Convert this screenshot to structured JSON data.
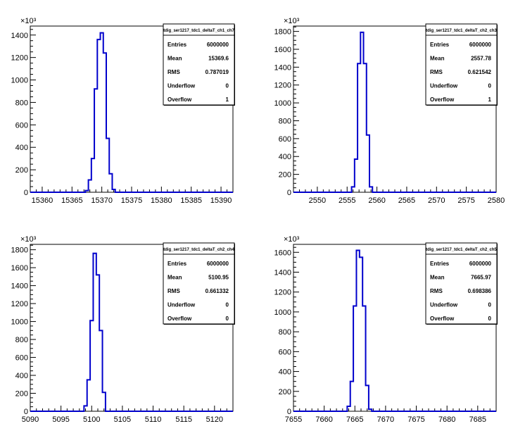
{
  "chart_data": [
    {
      "type": "histogram",
      "name": "tdig_ser1217_tdc1_deltaT_ch1_ch7",
      "x_ticks": [
        15360,
        15365,
        15370,
        15375,
        15380,
        15385,
        15390
      ],
      "xlim": [
        15358,
        15392
      ],
      "y_ticks": [
        0,
        200,
        400,
        600,
        800,
        1000,
        1200,
        1400
      ],
      "ylim": [
        0,
        1480
      ],
      "y_exponent_label": "×10³",
      "bin_width": 0.5,
      "bins": [
        {
          "x": 15367.5,
          "y": 15
        },
        {
          "x": 15368.0,
          "y": 110
        },
        {
          "x": 15368.5,
          "y": 300
        },
        {
          "x": 15369.0,
          "y": 920
        },
        {
          "x": 15369.5,
          "y": 1360
        },
        {
          "x": 15370.0,
          "y": 1420
        },
        {
          "x": 15370.5,
          "y": 1240
        },
        {
          "x": 15371.0,
          "y": 480
        },
        {
          "x": 15371.5,
          "y": 165
        },
        {
          "x": 15372.0,
          "y": 25
        }
      ],
      "stats": {
        "title": "tdig_ser1217_tdc1_deltaT_ch1_ch7",
        "rows": [
          {
            "label": "Entries",
            "value": "6000000"
          },
          {
            "label": "Mean",
            "value": "15369.6"
          },
          {
            "label": "RMS",
            "value": "0.787019"
          },
          {
            "label": "Underflow",
            "value": "0"
          },
          {
            "label": "Overflow",
            "value": "1"
          }
        ]
      }
    },
    {
      "type": "histogram",
      "name": "tdig_ser1217_tdc1_deltaT_ch2_ch3",
      "x_ticks": [
        2550,
        2555,
        2560,
        2565,
        2570,
        2575,
        2580
      ],
      "xlim": [
        2546,
        2580
      ],
      "y_ticks": [
        0,
        200,
        400,
        600,
        800,
        1000,
        1200,
        1400,
        1600,
        1800
      ],
      "ylim": [
        0,
        1860
      ],
      "y_exponent_label": "×10³",
      "bin_width": 0.5,
      "bins": [
        {
          "x": 2556.0,
          "y": 60
        },
        {
          "x": 2556.5,
          "y": 370
        },
        {
          "x": 2557.0,
          "y": 1440
        },
        {
          "x": 2557.5,
          "y": 1790
        },
        {
          "x": 2558.0,
          "y": 1440
        },
        {
          "x": 2558.5,
          "y": 640
        },
        {
          "x": 2559.0,
          "y": 60
        }
      ],
      "stats": {
        "title": "tdig_ser1217_tdc1_deltaT_ch2_ch3",
        "rows": [
          {
            "label": "Entries",
            "value": "6000000"
          },
          {
            "label": "Mean",
            "value": "2557.78"
          },
          {
            "label": "RMS",
            "value": "0.621542"
          },
          {
            "label": "Underflow",
            "value": "0"
          },
          {
            "label": "Overflow",
            "value": "1"
          }
        ]
      }
    },
    {
      "type": "histogram",
      "name": "tdig_ser1217_tdc1_deltaT_ch2_ch4",
      "x_ticks": [
        5090,
        5095,
        5100,
        5105,
        5110,
        5115,
        5120
      ],
      "xlim": [
        5090,
        5123
      ],
      "y_ticks": [
        0,
        200,
        400,
        600,
        800,
        1000,
        1200,
        1400,
        1600,
        1800
      ],
      "ylim": [
        0,
        1860
      ],
      "y_exponent_label": "×10³",
      "bin_width": 0.5,
      "bins": [
        {
          "x": 5099.0,
          "y": 60
        },
        {
          "x": 5099.5,
          "y": 350
        },
        {
          "x": 5100.0,
          "y": 1010
        },
        {
          "x": 5100.5,
          "y": 1760
        },
        {
          "x": 5101.0,
          "y": 1520
        },
        {
          "x": 5101.5,
          "y": 900
        },
        {
          "x": 5102.0,
          "y": 210
        }
      ],
      "stats": {
        "title": "tdig_ser1217_tdc1_deltaT_ch2_ch4",
        "rows": [
          {
            "label": "Entries",
            "value": "6000000"
          },
          {
            "label": "Mean",
            "value": "5100.95"
          },
          {
            "label": "RMS",
            "value": "0.661332"
          },
          {
            "label": "Underflow",
            "value": "0"
          },
          {
            "label": "Overflow",
            "value": "0"
          }
        ]
      }
    },
    {
      "type": "histogram",
      "name": "tdig_ser1217_tdc1_deltaT_ch2_ch5",
      "x_ticks": [
        7655,
        7660,
        7665,
        7670,
        7675,
        7680,
        7685
      ],
      "xlim": [
        7655,
        7688
      ],
      "y_ticks": [
        0,
        200,
        400,
        600,
        800,
        1000,
        1200,
        1400,
        1600
      ],
      "ylim": [
        0,
        1680
      ],
      "y_exponent_label": "×10³",
      "bin_width": 0.5,
      "bins": [
        {
          "x": 7664.0,
          "y": 50
        },
        {
          "x": 7664.5,
          "y": 300
        },
        {
          "x": 7665.0,
          "y": 1060
        },
        {
          "x": 7665.5,
          "y": 1620
        },
        {
          "x": 7666.0,
          "y": 1550
        },
        {
          "x": 7666.5,
          "y": 1060
        },
        {
          "x": 7667.0,
          "y": 260
        },
        {
          "x": 7667.5,
          "y": 20
        }
      ],
      "stats": {
        "title": "tdig_ser1217_tdc1_deltaT_ch2_ch5",
        "rows": [
          {
            "label": "Entries",
            "value": "6000000"
          },
          {
            "label": "Mean",
            "value": "7665.97"
          },
          {
            "label": "RMS",
            "value": "0.698386"
          },
          {
            "label": "Underflow",
            "value": "0"
          },
          {
            "label": "Overflow",
            "value": "0"
          }
        ]
      }
    }
  ]
}
